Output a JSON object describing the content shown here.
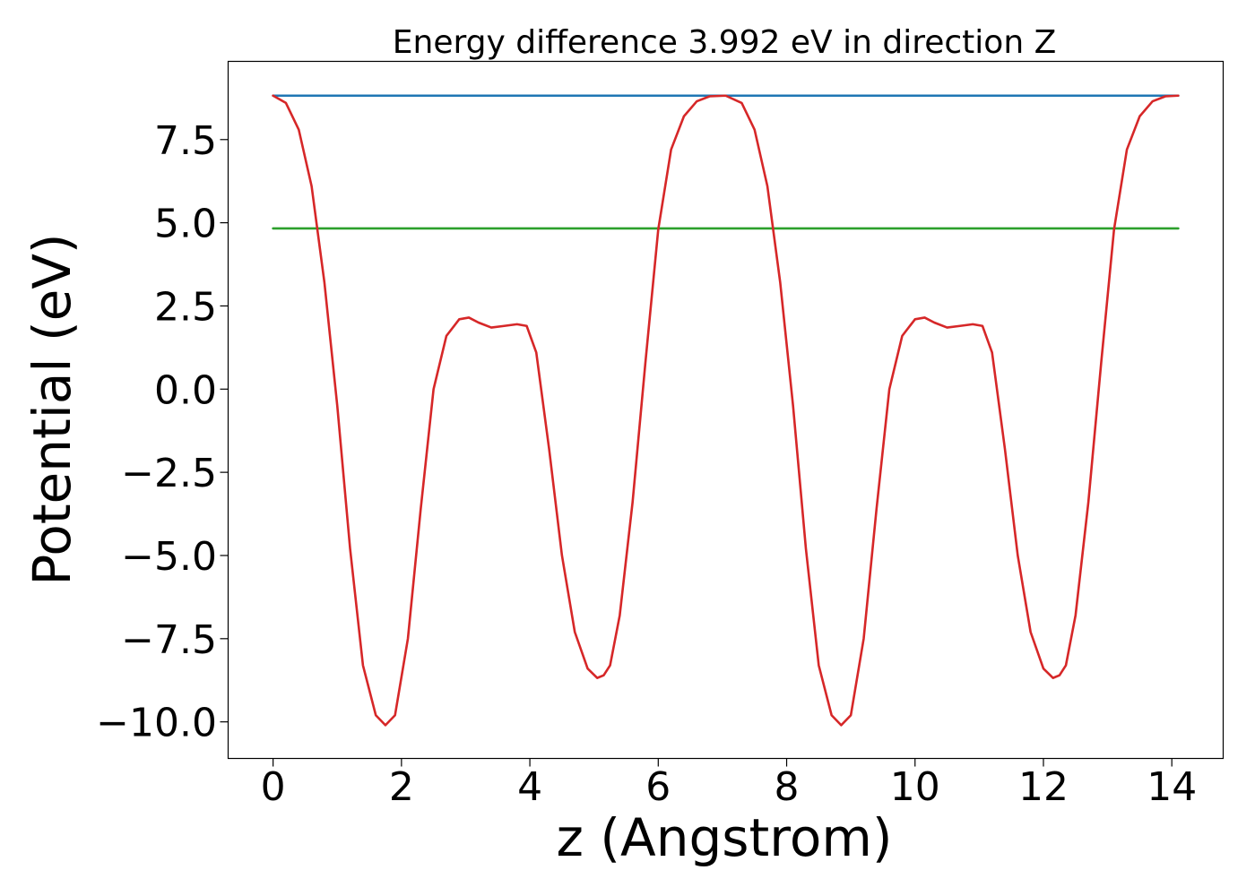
{
  "chart_data": {
    "type": "line",
    "title": "Energy difference 3.992 eV in direction Z",
    "xlabel": "z (Angstrom)",
    "ylabel": "Potential (eV)",
    "xlim": [
      -0.7,
      14.8
    ],
    "ylim": [
      -11.1,
      9.85
    ],
    "xticks": [
      0,
      2,
      4,
      6,
      8,
      10,
      12,
      14
    ],
    "xtick_labels": [
      "0",
      "2",
      "4",
      "6",
      "8",
      "10",
      "12",
      "14"
    ],
    "yticks": [
      7.5,
      5.0,
      2.5,
      0.0,
      -2.5,
      -5.0,
      -7.5,
      -10.0
    ],
    "ytick_labels": [
      "7.5",
      "5.0",
      "2.5",
      "0.0",
      "−2.5",
      "−5.0",
      "−7.5",
      "−10.0"
    ],
    "grid": false,
    "series": [
      {
        "color": "#1f77b4",
        "x": [
          0,
          14.1
        ],
        "y": [
          8.82,
          8.82
        ]
      },
      {
        "color": "#2ca02c",
        "x": [
          0,
          14.1
        ],
        "y": [
          4.83,
          4.83
        ]
      },
      {
        "color": "#d62728",
        "x": [
          0,
          0.2,
          0.4,
          0.6,
          0.8,
          1.0,
          1.2,
          1.4,
          1.6,
          1.75,
          1.9,
          2.1,
          2.3,
          2.5,
          2.7,
          2.9,
          3.05,
          3.2,
          3.4,
          3.6,
          3.8,
          3.95,
          4.1,
          4.3,
          4.5,
          4.7,
          4.9,
          5.05,
          5.15,
          5.25,
          5.4,
          5.6,
          5.8,
          6.0,
          6.2,
          6.4,
          6.6,
          6.8,
          7.05,
          7.3,
          7.5,
          7.7,
          7.9,
          8.1,
          8.3,
          8.5,
          8.7,
          8.85,
          9.0,
          9.2,
          9.4,
          9.6,
          9.8,
          10.0,
          10.15,
          10.3,
          10.5,
          10.7,
          10.9,
          11.05,
          11.2,
          11.4,
          11.6,
          11.8,
          12.0,
          12.15,
          12.25,
          12.35,
          12.5,
          12.7,
          12.9,
          13.1,
          13.3,
          13.5,
          13.7,
          13.9,
          14.1
        ],
        "y": [
          8.82,
          8.6,
          7.8,
          6.1,
          3.2,
          -0.5,
          -4.8,
          -8.3,
          -9.8,
          -10.1,
          -9.8,
          -7.5,
          -3.6,
          0.0,
          1.6,
          2.1,
          2.15,
          2.0,
          1.85,
          1.9,
          1.95,
          1.9,
          1.1,
          -1.8,
          -5.0,
          -7.3,
          -8.4,
          -8.68,
          -8.6,
          -8.3,
          -6.8,
          -3.4,
          0.8,
          4.8,
          7.2,
          8.2,
          8.65,
          8.8,
          8.82,
          8.6,
          7.8,
          6.1,
          3.2,
          -0.5,
          -4.8,
          -8.3,
          -9.8,
          -10.1,
          -9.8,
          -7.5,
          -3.6,
          0.0,
          1.6,
          2.1,
          2.15,
          2.0,
          1.85,
          1.9,
          1.95,
          1.9,
          1.1,
          -1.8,
          -5.0,
          -7.3,
          -8.4,
          -8.68,
          -8.6,
          -8.3,
          -6.8,
          -3.4,
          0.8,
          4.8,
          7.2,
          8.2,
          8.65,
          8.8,
          8.82
        ]
      }
    ]
  }
}
